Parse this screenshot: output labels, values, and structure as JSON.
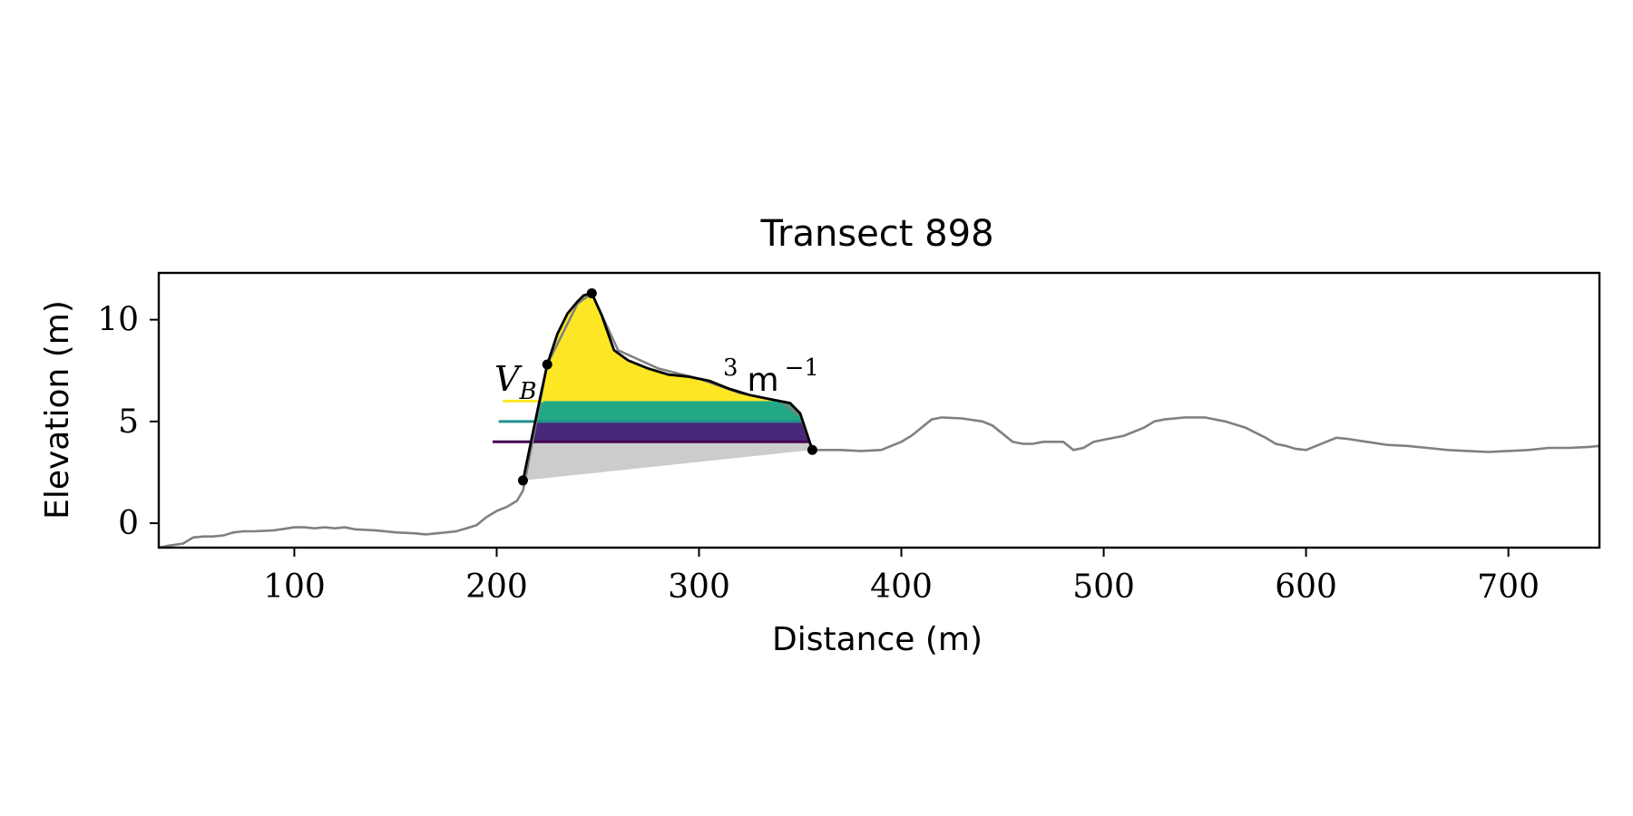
{
  "chart_data": {
    "type": "area",
    "title": "Transect 898",
    "xlabel": "Distance (m)",
    "ylabel": "Elevation (m)",
    "xlim": [
      33,
      745
    ],
    "ylim": [
      -1.2,
      12.3
    ],
    "xticks": [
      100,
      200,
      300,
      400,
      500,
      600,
      700
    ],
    "yticks": [
      0,
      5,
      10
    ],
    "grid": false,
    "annotation": {
      "label_parts": [
        "V",
        "B",
        "3",
        "m",
        "−1"
      ]
    },
    "colors": {
      "profile": "#808080",
      "dune": "#000000",
      "base_fill": "#cccccc",
      "band_low": "#440154",
      "band_mid": "#21908d",
      "band_high": "#fde725",
      "band_purple_fill": "#482878",
      "band_teal_fill": "#22a884"
    },
    "profile": {
      "x": [
        33,
        38,
        45,
        50,
        55,
        60,
        65,
        70,
        75,
        80,
        90,
        100,
        105,
        110,
        115,
        120,
        125,
        130,
        140,
        150,
        160,
        165,
        170,
        175,
        180,
        185,
        190,
        195,
        200,
        205,
        210,
        213,
        225,
        240,
        247,
        260,
        280,
        300,
        320,
        340,
        350,
        356,
        360,
        370,
        380,
        390,
        400,
        405,
        410,
        415,
        420,
        430,
        440,
        445,
        450,
        455,
        460,
        465,
        470,
        480,
        485,
        490,
        495,
        500,
        510,
        520,
        525,
        530,
        540,
        550,
        560,
        570,
        580,
        585,
        590,
        595,
        600,
        610,
        615,
        620,
        630,
        640,
        650,
        660,
        670,
        680,
        690,
        700,
        710,
        720,
        730,
        740,
        745
      ],
      "y": [
        -1.2,
        -1.1,
        -1.0,
        -0.7,
        -0.65,
        -0.65,
        -0.6,
        -0.45,
        -0.4,
        -0.4,
        -0.35,
        -0.2,
        -0.2,
        -0.25,
        -0.2,
        -0.25,
        -0.2,
        -0.3,
        -0.35,
        -0.45,
        -0.5,
        -0.55,
        -0.5,
        -0.45,
        -0.4,
        -0.25,
        -0.1,
        0.3,
        0.6,
        0.8,
        1.1,
        1.6,
        7.8,
        10.8,
        11.3,
        8.5,
        7.6,
        7.1,
        6.4,
        6.0,
        5.3,
        3.6,
        3.6,
        3.6,
        3.55,
        3.6,
        4.0,
        4.3,
        4.7,
        5.1,
        5.2,
        5.15,
        5.0,
        4.8,
        4.4,
        4.0,
        3.9,
        3.9,
        4.0,
        4.0,
        3.6,
        3.7,
        4.0,
        4.1,
        4.3,
        4.7,
        5.0,
        5.1,
        5.2,
        5.2,
        5.0,
        4.7,
        4.2,
        3.9,
        3.8,
        3.65,
        3.6,
        4.0,
        4.2,
        4.15,
        4.0,
        3.85,
        3.8,
        3.7,
        3.6,
        3.55,
        3.5,
        3.55,
        3.6,
        3.7,
        3.7,
        3.75,
        3.8
      ]
    },
    "dune": {
      "x": [
        213,
        218,
        222,
        225,
        230,
        235,
        240,
        243,
        247,
        252,
        258,
        265,
        275,
        285,
        295,
        305,
        315,
        325,
        335,
        345,
        350,
        356
      ],
      "y": [
        2.1,
        4.5,
        6.4,
        7.8,
        9.3,
        10.3,
        10.9,
        11.2,
        11.3,
        10.2,
        8.5,
        8.0,
        7.6,
        7.3,
        7.2,
        7.0,
        6.6,
        6.3,
        6.1,
        5.9,
        5.4,
        3.6
      ],
      "points": [
        {
          "x": 213,
          "y": 2.1
        },
        {
          "x": 225,
          "y": 7.8
        },
        {
          "x": 247,
          "y": 11.3
        },
        {
          "x": 356,
          "y": 3.6
        }
      ]
    },
    "bands": [
      {
        "name": "low",
        "level": 4.0,
        "legend_start": 198
      },
      {
        "name": "mid",
        "level": 5.0,
        "legend_start": 201
      },
      {
        "name": "high",
        "level": 6.0,
        "legend_start": 203
      }
    ]
  }
}
